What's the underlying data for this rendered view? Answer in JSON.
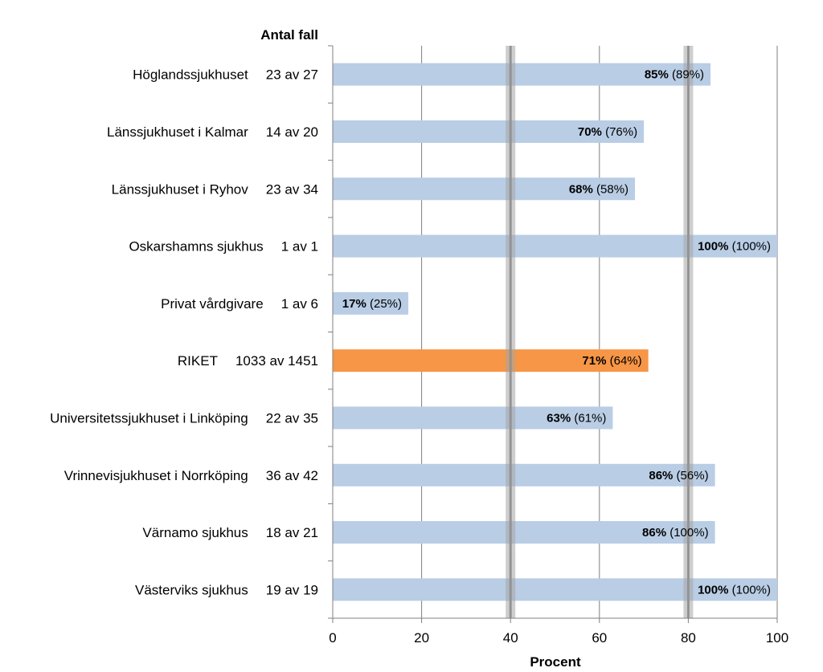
{
  "chart_data": {
    "type": "bar",
    "orientation": "horizontal",
    "title": "",
    "xlabel": "Procent",
    "count_header": "Antal fall",
    "xlim": [
      0,
      100
    ],
    "xticks": [
      "0",
      "20",
      "40",
      "60",
      "80",
      "100"
    ],
    "grid": true,
    "reference_lines": [
      40,
      80
    ],
    "categories": [
      "Höglandssjukhuset",
      "Länssjukhuset i Kalmar",
      "Länssjukhuset i Ryhov",
      "Oskarshamns sjukhus",
      "Privat vårdgivare",
      "RIKET",
      "Universitetssjukhuset i Linköping",
      "Vrinnevisjukhuset i Norrköping",
      "Värnamo sjukhus",
      "Västerviks sjukhus"
    ],
    "counts": [
      "23 av 27",
      "14 av 20",
      "23 av 34",
      "1 av 1",
      "1 av 6",
      "1033 av 1451",
      "22 av 35",
      "36 av 42",
      "18 av 21",
      "19 av 19"
    ],
    "values": [
      85,
      70,
      68,
      100,
      17,
      71,
      63,
      86,
      86,
      100
    ],
    "value_labels": [
      "85%",
      "70%",
      "68%",
      "100%",
      "17%",
      "71%",
      "63%",
      "86%",
      "86%",
      "100%"
    ],
    "previous_labels": [
      "(89%)",
      "(76%)",
      "(58%)",
      "(100%)",
      "(25%)",
      "(64%)",
      "(61%)",
      "(56%)",
      "(100%)",
      "(100%)"
    ],
    "highlight_index": 5,
    "colors": {
      "bar": "#b9cde5",
      "highlight": "#f79646",
      "reference_line": "#a6a6a6",
      "grid": "#7f7f7f",
      "axis": "#808080"
    }
  }
}
